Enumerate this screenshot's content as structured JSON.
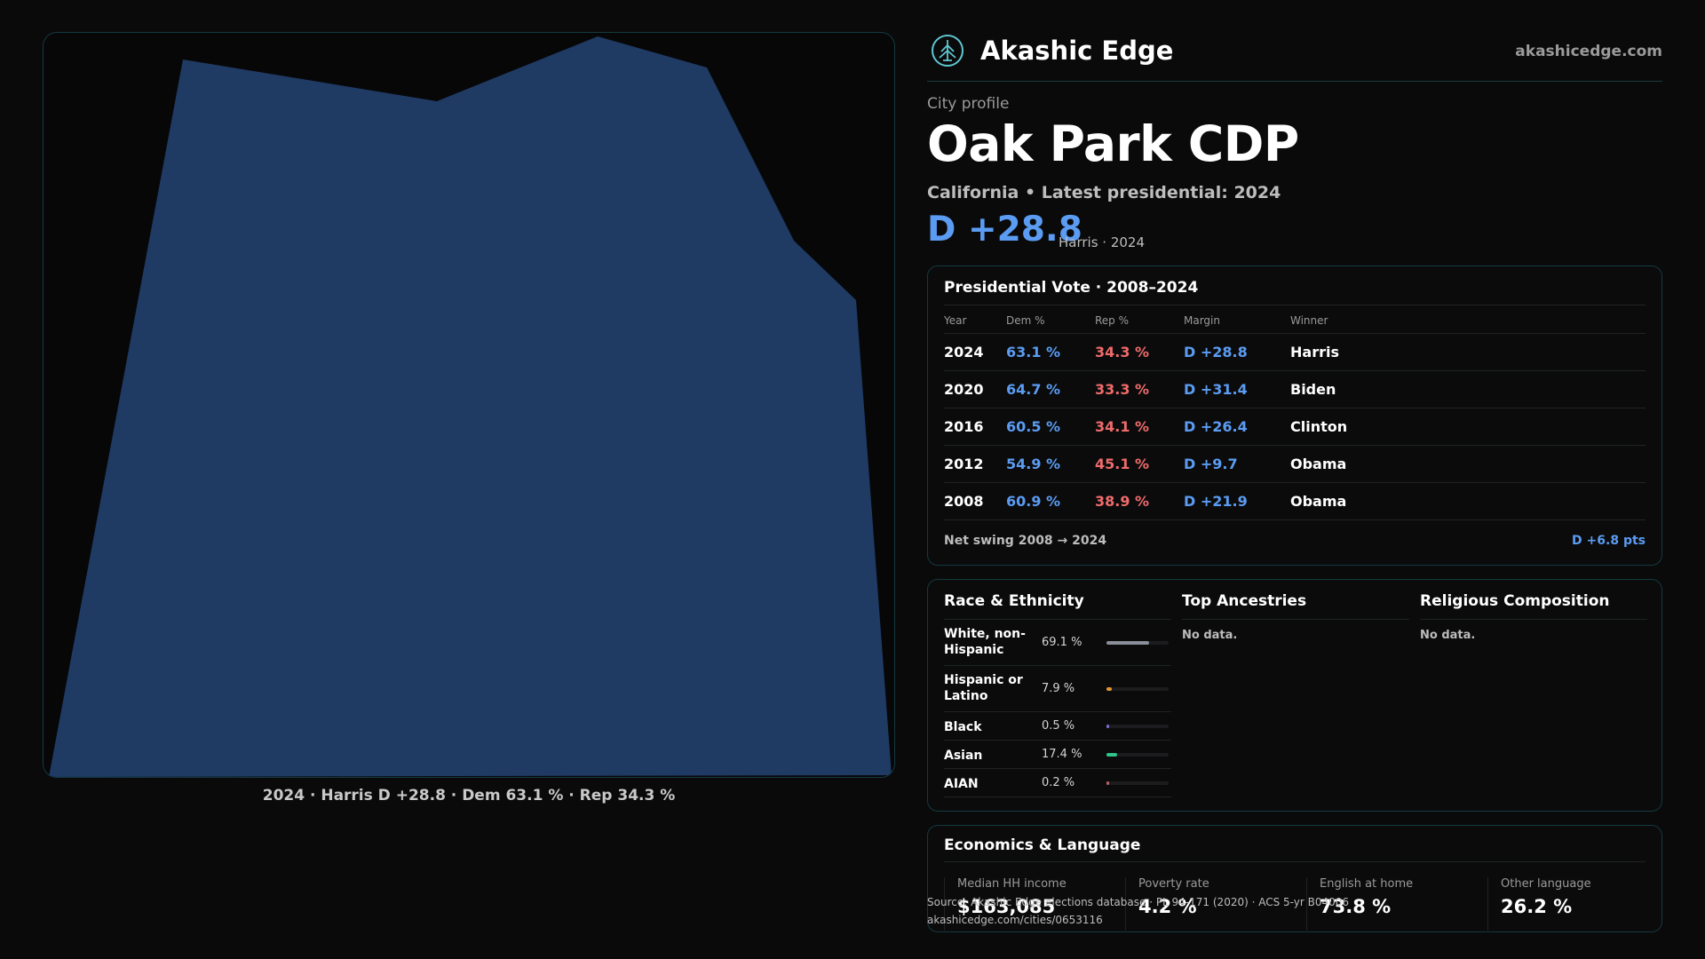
{
  "brand": {
    "name": "Akashic Edge",
    "domain": "akashicedge.com",
    "logo_icon": "tree-crest-icon"
  },
  "city": {
    "eyebrow": "City profile",
    "name": "Oak Park CDP",
    "subtitle": "California • Latest presidential: 2024",
    "margin": "D +28.8",
    "margin_note": "Harris · 2024"
  },
  "map": {
    "caption": "2024 · Harris D +28.8 · Dem 63.1 % · Rep 34.3 %",
    "fill_color": "#1f3a63"
  },
  "presidential": {
    "title": "Presidential Vote · 2008–2024",
    "columns": {
      "year": "Year",
      "dem": "Dem %",
      "rep": "Rep %",
      "margin": "Margin",
      "winner": "Winner"
    },
    "rows": [
      {
        "year": "2024",
        "dem": "63.1 %",
        "rep": "34.3 %",
        "margin": "D +28.8",
        "winner": "Harris"
      },
      {
        "year": "2020",
        "dem": "64.7 %",
        "rep": "33.3 %",
        "margin": "D +31.4",
        "winner": "Biden"
      },
      {
        "year": "2016",
        "dem": "60.5 %",
        "rep": "34.1 %",
        "margin": "D +26.4",
        "winner": "Clinton"
      },
      {
        "year": "2012",
        "dem": "54.9 %",
        "rep": "45.1 %",
        "margin": "D +9.7",
        "winner": "Obama"
      },
      {
        "year": "2008",
        "dem": "60.9 %",
        "rep": "38.9 %",
        "margin": "D +21.9",
        "winner": "Obama"
      }
    ],
    "swing_label": "Net swing 2008 → 2024",
    "swing_value": "D +6.8 pts"
  },
  "race": {
    "title": "Race & Ethnicity",
    "rows": [
      {
        "label": "White, non-Hispanic",
        "pct": "69.1 %",
        "value": 69.1,
        "color": "#8a8f99"
      },
      {
        "label": "Hispanic or Latino",
        "pct": "7.9 %",
        "value": 7.9,
        "color": "#e0962f"
      },
      {
        "label": "Black",
        "pct": "0.5 %",
        "value": 0.5,
        "color": "#7a6fd0"
      },
      {
        "label": "Asian",
        "pct": "17.4 %",
        "value": 17.4,
        "color": "#2fc48a"
      },
      {
        "label": "AIAN",
        "pct": "0.2 %",
        "value": 0.2,
        "color": "#c06060"
      }
    ]
  },
  "ancestries": {
    "title": "Top Ancestries",
    "empty": "No data."
  },
  "religion": {
    "title": "Religious Composition",
    "empty": "No data."
  },
  "economics": {
    "title": "Economics & Language",
    "stats": [
      {
        "label": "Median HH income",
        "value": "$163,085"
      },
      {
        "label": "Poverty rate",
        "value": "4.2 %"
      },
      {
        "label": "English at home",
        "value": "73.8 %"
      },
      {
        "label": "Other language",
        "value": "26.2 %"
      }
    ]
  },
  "source": {
    "line1": "Source: Akashic Edge elections database · PL 94-171 (2020) · ACS 5-yr B04006",
    "line2": "akashicedge.com/cities/0653116"
  }
}
